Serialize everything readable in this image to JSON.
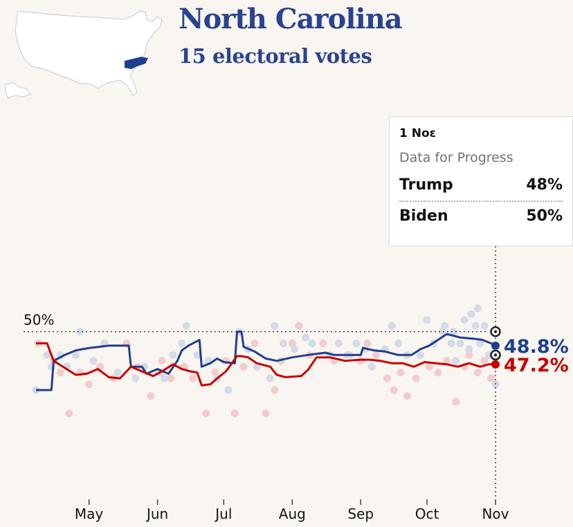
{
  "header": {
    "title": "North Carolina",
    "subtitle": "15 electoral votes"
  },
  "tooltip": {
    "date": "1 Noε",
    "pollster": "Data for Progress",
    "rows": [
      {
        "name": "Trump",
        "value": "48%"
      },
      {
        "name": "Biden",
        "value": "50%"
      }
    ]
  },
  "colors": {
    "biden": "#1f3f8f",
    "trump": "#c70000",
    "biden_dot": "#d3dae8",
    "trump_dot": "#f2cccc",
    "text": "#121212",
    "background": "#f9f5f0"
  },
  "chart_data": {
    "type": "line",
    "x_axis": "date",
    "x_range": [
      "2020-04-07",
      "2020-11-01"
    ],
    "y_unit": "%",
    "y_range": [
      36,
      54
    ],
    "reference_line": {
      "y": 50,
      "label": "50%"
    },
    "x_ticks": [
      {
        "label": "May",
        "date": "2020-05-01"
      },
      {
        "label": "Jun",
        "date": "2020-06-01"
      },
      {
        "label": "Jul",
        "date": "2020-07-01"
      },
      {
        "label": "Aug",
        "date": "2020-08-01"
      },
      {
        "label": "Sep",
        "date": "2020-09-01"
      },
      {
        "label": "Oct",
        "date": "2020-10-01"
      },
      {
        "label": "Nov",
        "date": "2020-11-01"
      }
    ],
    "series": [
      {
        "name": "Biden",
        "end_label": "48.8%",
        "points": [
          [
            "2020-04-07",
            45
          ],
          [
            "2020-04-14",
            45
          ],
          [
            "2020-04-15",
            47.5
          ],
          [
            "2020-04-20",
            48
          ],
          [
            "2020-04-25",
            48.4
          ],
          [
            "2020-05-01",
            48.6
          ],
          [
            "2020-05-10",
            48.8
          ],
          [
            "2020-05-19",
            48.8
          ],
          [
            "2020-05-20",
            47
          ],
          [
            "2020-05-25",
            47
          ],
          [
            "2020-05-27",
            46.4
          ],
          [
            "2020-06-01",
            46.8
          ],
          [
            "2020-06-06",
            46.4
          ],
          [
            "2020-06-10",
            47.5
          ],
          [
            "2020-06-12",
            48.4
          ],
          [
            "2020-06-15",
            48.8
          ],
          [
            "2020-06-20",
            49.3
          ],
          [
            "2020-06-21",
            47
          ],
          [
            "2020-06-25",
            47.3
          ],
          [
            "2020-06-28",
            47.7
          ],
          [
            "2020-07-01",
            47.4
          ],
          [
            "2020-07-06",
            47.3
          ],
          [
            "2020-07-07",
            50
          ],
          [
            "2020-07-09",
            50
          ],
          [
            "2020-07-10",
            48.7
          ],
          [
            "2020-07-15",
            48.3
          ],
          [
            "2020-07-20",
            47.7
          ],
          [
            "2020-07-25",
            47.5
          ],
          [
            "2020-08-01",
            47.8
          ],
          [
            "2020-08-08",
            48
          ],
          [
            "2020-08-12",
            48.1
          ],
          [
            "2020-08-16",
            48.2
          ],
          [
            "2020-08-20",
            48
          ],
          [
            "2020-08-28",
            48
          ],
          [
            "2020-09-01",
            48
          ],
          [
            "2020-09-02",
            48.6
          ],
          [
            "2020-09-07",
            48.4
          ],
          [
            "2020-09-12",
            48.3
          ],
          [
            "2020-09-18",
            48
          ],
          [
            "2020-09-24",
            48
          ],
          [
            "2020-09-28",
            48.5
          ],
          [
            "2020-10-02",
            48.8
          ],
          [
            "2020-10-06",
            49.3
          ],
          [
            "2020-10-10",
            49.8
          ],
          [
            "2020-10-16",
            49.5
          ],
          [
            "2020-10-22",
            49.4
          ],
          [
            "2020-10-26",
            49.3
          ],
          [
            "2020-10-30",
            49
          ],
          [
            "2020-11-01",
            48.8
          ]
        ]
      },
      {
        "name": "Trump",
        "end_label": "47.2%",
        "points": [
          [
            "2020-04-07",
            49
          ],
          [
            "2020-04-12",
            49
          ],
          [
            "2020-04-15",
            47.5
          ],
          [
            "2020-04-20",
            46.9
          ],
          [
            "2020-04-25",
            46.3
          ],
          [
            "2020-04-30",
            46.4
          ],
          [
            "2020-05-05",
            46.8
          ],
          [
            "2020-05-10",
            46.1
          ],
          [
            "2020-05-15",
            46
          ],
          [
            "2020-05-20",
            47
          ],
          [
            "2020-05-25",
            46.6
          ],
          [
            "2020-05-30",
            46.2
          ],
          [
            "2020-06-03",
            46.6
          ],
          [
            "2020-06-08",
            47.2
          ],
          [
            "2020-06-12",
            46.8
          ],
          [
            "2020-06-16",
            46.6
          ],
          [
            "2020-06-19",
            46.5
          ],
          [
            "2020-06-21",
            45.4
          ],
          [
            "2020-06-25",
            45.5
          ],
          [
            "2020-06-28",
            46
          ],
          [
            "2020-07-02",
            46.6
          ],
          [
            "2020-07-07",
            47.9
          ],
          [
            "2020-07-09",
            47.9
          ],
          [
            "2020-07-12",
            47.8
          ],
          [
            "2020-07-16",
            47.3
          ],
          [
            "2020-07-22",
            47
          ],
          [
            "2020-07-25",
            46.3
          ],
          [
            "2020-07-29",
            46.1
          ],
          [
            "2020-08-05",
            46.2
          ],
          [
            "2020-08-08",
            46.7
          ],
          [
            "2020-08-12",
            47.8
          ],
          [
            "2020-08-18",
            47.8
          ],
          [
            "2020-08-25",
            47.5
          ],
          [
            "2020-09-01",
            47.6
          ],
          [
            "2020-09-05",
            47.6
          ],
          [
            "2020-09-10",
            47.5
          ],
          [
            "2020-09-15",
            47.3
          ],
          [
            "2020-09-20",
            47.3
          ],
          [
            "2020-09-25",
            47
          ],
          [
            "2020-09-30",
            47.4
          ],
          [
            "2020-10-05",
            47.3
          ],
          [
            "2020-10-10",
            47.2
          ],
          [
            "2020-10-15",
            47
          ],
          [
            "2020-10-20",
            47.3
          ],
          [
            "2020-10-25",
            47
          ],
          [
            "2020-10-29",
            47.2
          ],
          [
            "2020-11-01",
            47.2
          ]
        ]
      }
    ],
    "end_markers": [
      {
        "series": "Biden",
        "value": 48.8
      },
      {
        "series": "Trump",
        "value": 47.2
      }
    ],
    "highlight_poll": {
      "date": "2020-11-01",
      "Biden": 50,
      "Trump": 48
    },
    "polls": {
      "Biden": [
        [
          "2020-04-07",
          45
        ],
        [
          "2020-04-12",
          48
        ],
        [
          "2020-04-14",
          47
        ],
        [
          "2020-04-18",
          48
        ],
        [
          "2020-04-21",
          47
        ],
        [
          "2020-04-25",
          48
        ],
        [
          "2020-04-27",
          50
        ],
        [
          "2020-05-03",
          47.5
        ],
        [
          "2020-05-08",
          49
        ],
        [
          "2020-05-14",
          46.5
        ],
        [
          "2020-05-22",
          46
        ],
        [
          "2020-05-26",
          47
        ],
        [
          "2020-06-02",
          46.5
        ],
        [
          "2020-06-04",
          46
        ],
        [
          "2020-06-08",
          48
        ],
        [
          "2020-06-12",
          49
        ],
        [
          "2020-06-14",
          50.5
        ],
        [
          "2020-06-19",
          48
        ],
        [
          "2020-06-24",
          47.5
        ],
        [
          "2020-06-28",
          46
        ],
        [
          "2020-07-03",
          45
        ],
        [
          "2020-07-08",
          50
        ],
        [
          "2020-07-12",
          48.5
        ],
        [
          "2020-07-16",
          47
        ],
        [
          "2020-07-22",
          46
        ],
        [
          "2020-07-24",
          50.5
        ],
        [
          "2020-07-28",
          49
        ],
        [
          "2020-08-02",
          48.5
        ],
        [
          "2020-08-07",
          49.5
        ],
        [
          "2020-08-10",
          49
        ],
        [
          "2020-08-18",
          48
        ],
        [
          "2020-08-22",
          49
        ],
        [
          "2020-08-27",
          48
        ],
        [
          "2020-08-30",
          49
        ],
        [
          "2020-09-03",
          48.5
        ],
        [
          "2020-09-06",
          47
        ],
        [
          "2020-09-12",
          48.5
        ],
        [
          "2020-09-15",
          50.5
        ],
        [
          "2020-09-18",
          49
        ],
        [
          "2020-09-22",
          48
        ],
        [
          "2020-09-28",
          48
        ],
        [
          "2020-10-01",
          51
        ],
        [
          "2020-10-04",
          49
        ],
        [
          "2020-10-08",
          50
        ],
        [
          "2020-10-09",
          50.5
        ],
        [
          "2020-10-12",
          49
        ],
        [
          "2020-10-13",
          50
        ],
        [
          "2020-10-14",
          47.5
        ],
        [
          "2020-10-16",
          49
        ],
        [
          "2020-10-18",
          51
        ],
        [
          "2020-10-20",
          48.5
        ],
        [
          "2020-10-21",
          51.5
        ],
        [
          "2020-10-23",
          50.5
        ],
        [
          "2020-10-24",
          52
        ],
        [
          "2020-10-25",
          49
        ],
        [
          "2020-10-27",
          50.5
        ],
        [
          "2020-10-29",
          48
        ],
        [
          "2020-11-01",
          45.5
        ]
      ],
      "Trump": [
        [
          "2020-04-08",
          49
        ],
        [
          "2020-04-15",
          47.5
        ],
        [
          "2020-04-18",
          46.5
        ],
        [
          "2020-04-22",
          43
        ],
        [
          "2020-04-27",
          46.5
        ],
        [
          "2020-05-01",
          45.5
        ],
        [
          "2020-05-06",
          47
        ],
        [
          "2020-05-12",
          46
        ],
        [
          "2020-05-18",
          49
        ],
        [
          "2020-05-23",
          47
        ],
        [
          "2020-05-29",
          44.5
        ],
        [
          "2020-06-03",
          47.5
        ],
        [
          "2020-06-07",
          46
        ],
        [
          "2020-06-13",
          47
        ],
        [
          "2020-06-17",
          46
        ],
        [
          "2020-06-23",
          43
        ],
        [
          "2020-06-27",
          46.5
        ],
        [
          "2020-07-02",
          47.5
        ],
        [
          "2020-07-06",
          43
        ],
        [
          "2020-07-10",
          47
        ],
        [
          "2020-07-15",
          49
        ],
        [
          "2020-07-20",
          43
        ],
        [
          "2020-07-24",
          45
        ],
        [
          "2020-07-27",
          47.5
        ],
        [
          "2020-08-01",
          49
        ],
        [
          "2020-08-04",
          50.5
        ],
        [
          "2020-08-09",
          48
        ],
        [
          "2020-08-15",
          49
        ],
        [
          "2020-08-20",
          47.5
        ],
        [
          "2020-08-26",
          48
        ],
        [
          "2020-09-01",
          47.5
        ],
        [
          "2020-09-04",
          49
        ],
        [
          "2020-09-08",
          48
        ],
        [
          "2020-09-13",
          46
        ],
        [
          "2020-09-16",
          45
        ],
        [
          "2020-09-19",
          46.5
        ],
        [
          "2020-09-22",
          44.5
        ],
        [
          "2020-09-26",
          46
        ],
        [
          "2020-10-02",
          47
        ],
        [
          "2020-10-06",
          46.5
        ],
        [
          "2020-10-10",
          47.5
        ],
        [
          "2020-10-14",
          44
        ],
        [
          "2020-10-18",
          47
        ],
        [
          "2020-10-20",
          48
        ],
        [
          "2020-10-24",
          46.5
        ],
        [
          "2020-10-27",
          47.5
        ],
        [
          "2020-10-30",
          46
        ]
      ]
    }
  }
}
